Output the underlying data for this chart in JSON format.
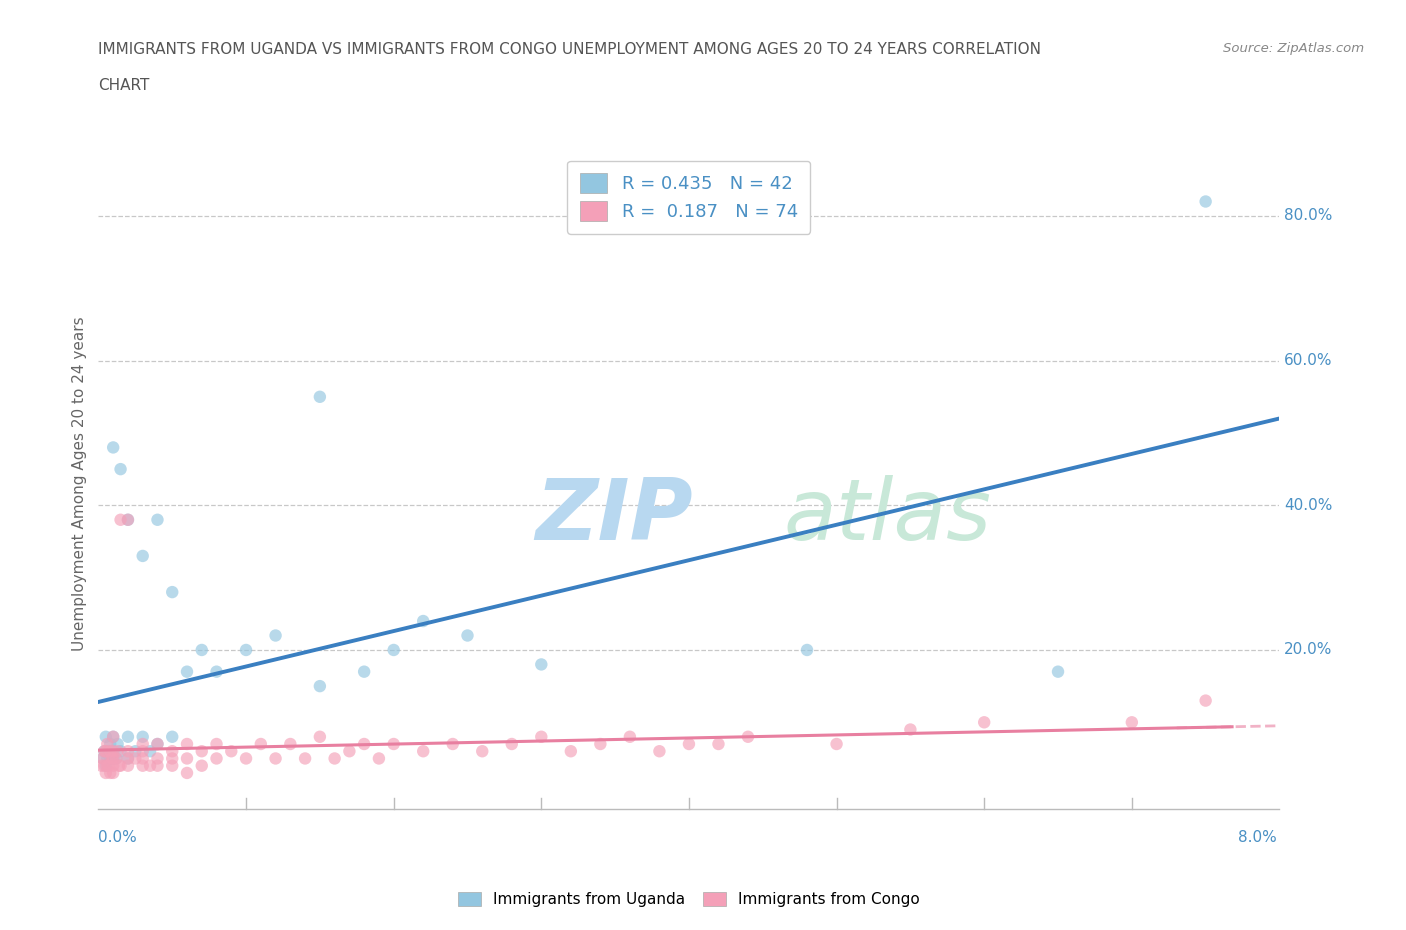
{
  "title_line1": "IMMIGRANTS FROM UGANDA VS IMMIGRANTS FROM CONGO UNEMPLOYMENT AMONG AGES 20 TO 24 YEARS CORRELATION",
  "title_line2": "CHART",
  "source": "Source: ZipAtlas.com",
  "ylabel": "Unemployment Among Ages 20 to 24 years",
  "ytick_values": [
    0.2,
    0.4,
    0.6,
    0.8
  ],
  "ytick_labels": [
    "20.0%",
    "40.0%",
    "60.0%",
    "80.0%"
  ],
  "xlim": [
    0.0,
    0.08
  ],
  "ylim": [
    -0.02,
    0.88
  ],
  "legend_uganda": "Immigrants from Uganda",
  "legend_congo": "Immigrants from Congo",
  "R_uganda": 0.435,
  "N_uganda": 42,
  "R_congo": 0.187,
  "N_congo": 74,
  "color_uganda": "#93c6e0",
  "color_congo": "#f4a0b8",
  "color_line_uganda": "#3a7fc1",
  "color_line_congo": "#e87fa0",
  "color_axis_text": "#4a90c4",
  "watermark": "ZIPAtlas",
  "watermark_color": "#d6eaf8",
  "uganda_x": [
    0.0003,
    0.0004,
    0.0005,
    0.0005,
    0.0006,
    0.0007,
    0.0008,
    0.0008,
    0.001,
    0.001,
    0.001,
    0.001,
    0.0012,
    0.0013,
    0.0015,
    0.0015,
    0.002,
    0.002,
    0.002,
    0.0025,
    0.003,
    0.003,
    0.0035,
    0.004,
    0.004,
    0.005,
    0.005,
    0.006,
    0.007,
    0.008,
    0.01,
    0.012,
    0.015,
    0.015,
    0.018,
    0.02,
    0.022,
    0.025,
    0.03,
    0.048,
    0.065,
    0.075
  ],
  "uganda_y": [
    0.05,
    0.06,
    0.04,
    0.08,
    0.05,
    0.06,
    0.05,
    0.07,
    0.05,
    0.06,
    0.08,
    0.48,
    0.05,
    0.07,
    0.06,
    0.45,
    0.05,
    0.08,
    0.38,
    0.06,
    0.08,
    0.33,
    0.06,
    0.07,
    0.38,
    0.08,
    0.28,
    0.17,
    0.2,
    0.17,
    0.2,
    0.22,
    0.15,
    0.55,
    0.17,
    0.2,
    0.24,
    0.22,
    0.18,
    0.2,
    0.17,
    0.82
  ],
  "congo_x": [
    0.0002,
    0.0003,
    0.0004,
    0.0004,
    0.0005,
    0.0005,
    0.0006,
    0.0006,
    0.0007,
    0.0008,
    0.0008,
    0.0009,
    0.001,
    0.001,
    0.001,
    0.001,
    0.001,
    0.0012,
    0.0013,
    0.0014,
    0.0015,
    0.0015,
    0.002,
    0.002,
    0.002,
    0.002,
    0.0025,
    0.003,
    0.003,
    0.003,
    0.003,
    0.0035,
    0.004,
    0.004,
    0.004,
    0.005,
    0.005,
    0.005,
    0.006,
    0.006,
    0.006,
    0.007,
    0.007,
    0.008,
    0.008,
    0.009,
    0.01,
    0.011,
    0.012,
    0.013,
    0.014,
    0.015,
    0.016,
    0.017,
    0.018,
    0.019,
    0.02,
    0.022,
    0.024,
    0.026,
    0.028,
    0.03,
    0.032,
    0.034,
    0.036,
    0.038,
    0.04,
    0.042,
    0.044,
    0.05,
    0.055,
    0.06,
    0.07,
    0.075
  ],
  "congo_y": [
    0.04,
    0.05,
    0.04,
    0.06,
    0.03,
    0.06,
    0.04,
    0.07,
    0.04,
    0.03,
    0.06,
    0.05,
    0.04,
    0.06,
    0.05,
    0.08,
    0.03,
    0.05,
    0.06,
    0.04,
    0.04,
    0.38,
    0.05,
    0.06,
    0.04,
    0.38,
    0.05,
    0.04,
    0.06,
    0.05,
    0.07,
    0.04,
    0.05,
    0.07,
    0.04,
    0.05,
    0.06,
    0.04,
    0.05,
    0.07,
    0.03,
    0.06,
    0.04,
    0.05,
    0.07,
    0.06,
    0.05,
    0.07,
    0.05,
    0.07,
    0.05,
    0.08,
    0.05,
    0.06,
    0.07,
    0.05,
    0.07,
    0.06,
    0.07,
    0.06,
    0.07,
    0.08,
    0.06,
    0.07,
    0.08,
    0.06,
    0.07,
    0.07,
    0.08,
    0.07,
    0.09,
    0.1,
    0.1,
    0.13
  ]
}
